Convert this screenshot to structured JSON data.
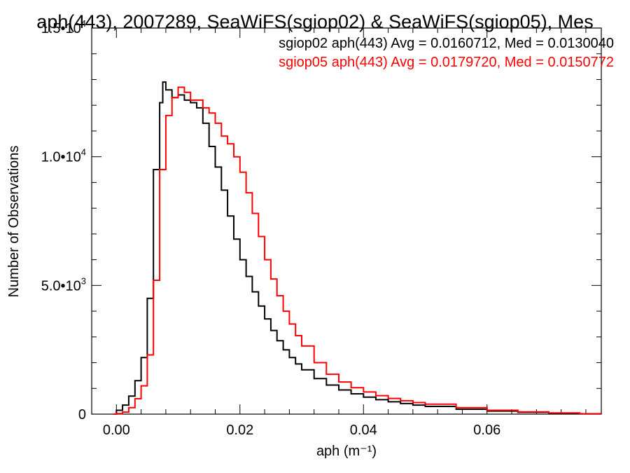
{
  "chart_data": {
    "type": "line",
    "title": "aph(443), 2007289, SeaWiFS(sgiop02) & SeaWiFS(sgiop05), Mes",
    "xlabel": "aph (m⁻¹)",
    "ylabel": "Number of Observations",
    "xlim": [
      -0.004,
      0.0785
    ],
    "ylim": [
      0,
      15000
    ],
    "xticks": [
      {
        "value": 0.0,
        "label": "0.00"
      },
      {
        "value": 0.02,
        "label": "0.02"
      },
      {
        "value": 0.04,
        "label": "0.04"
      },
      {
        "value": 0.06,
        "label": "0.06"
      }
    ],
    "yticks": [
      {
        "value": 0,
        "label": "0",
        "exp": ""
      },
      {
        "value": 5000,
        "label": "5.0•10",
        "exp": "3"
      },
      {
        "value": 10000,
        "label": "1.0•10",
        "exp": "4"
      },
      {
        "value": 15000,
        "label": "1.5•10",
        "exp": "4"
      }
    ],
    "grid": false,
    "legend": "top-right",
    "series": [
      {
        "name": "sgiop02",
        "color": "#000000",
        "annotation": "sgiop02 aph(443) Avg = 0.0160712, Med = 0.0130040",
        "x": [
          -0.0005,
          0.0,
          0.001,
          0.002,
          0.003,
          0.004,
          0.005,
          0.006,
          0.007,
          0.0075,
          0.008,
          0.009,
          0.01,
          0.011,
          0.012,
          0.013,
          0.014,
          0.015,
          0.016,
          0.017,
          0.018,
          0.019,
          0.02,
          0.021,
          0.022,
          0.023,
          0.024,
          0.025,
          0.026,
          0.027,
          0.028,
          0.029,
          0.03,
          0.032,
          0.034,
          0.036,
          0.038,
          0.04,
          0.042,
          0.044,
          0.046,
          0.048,
          0.05,
          0.055,
          0.06,
          0.065,
          0.07,
          0.075,
          0.0785
        ],
        "y": [
          0,
          150,
          350,
          700,
          1300,
          2200,
          4500,
          9500,
          12100,
          12900,
          12600,
          12300,
          12400,
          12200,
          12100,
          11900,
          11300,
          10400,
          9600,
          8700,
          7700,
          6800,
          6000,
          5350,
          4750,
          4200,
          3700,
          3250,
          2850,
          2500,
          2200,
          1950,
          1720,
          1380,
          1130,
          940,
          790,
          660,
          560,
          480,
          410,
          350,
          300,
          190,
          120,
          70,
          35,
          12,
          5
        ]
      },
      {
        "name": "sgiop05",
        "color": "#ff0000",
        "annotation": "sgiop05 aph(443) Avg = 0.0179720, Med = 0.0150772",
        "x": [
          -0.0005,
          0.0,
          0.001,
          0.002,
          0.003,
          0.004,
          0.005,
          0.006,
          0.007,
          0.008,
          0.009,
          0.01,
          0.011,
          0.012,
          0.013,
          0.014,
          0.015,
          0.016,
          0.017,
          0.018,
          0.019,
          0.02,
          0.021,
          0.022,
          0.023,
          0.024,
          0.025,
          0.026,
          0.027,
          0.028,
          0.029,
          0.03,
          0.032,
          0.034,
          0.036,
          0.038,
          0.04,
          0.042,
          0.044,
          0.046,
          0.048,
          0.05,
          0.055,
          0.06,
          0.065,
          0.07,
          0.075,
          0.0785
        ],
        "y": [
          0,
          20,
          80,
          250,
          600,
          1100,
          2300,
          5200,
          9500,
          11600,
          12300,
          12700,
          12500,
          12200,
          12200,
          11900,
          11700,
          11300,
          10800,
          10500,
          10000,
          9400,
          8600,
          7800,
          6900,
          6000,
          5250,
          4600,
          4000,
          3500,
          3050,
          2650,
          2000,
          1550,
          1250,
          1030,
          860,
          720,
          610,
          520,
          450,
          390,
          250,
          150,
          90,
          45,
          15,
          5
        ]
      }
    ]
  }
}
